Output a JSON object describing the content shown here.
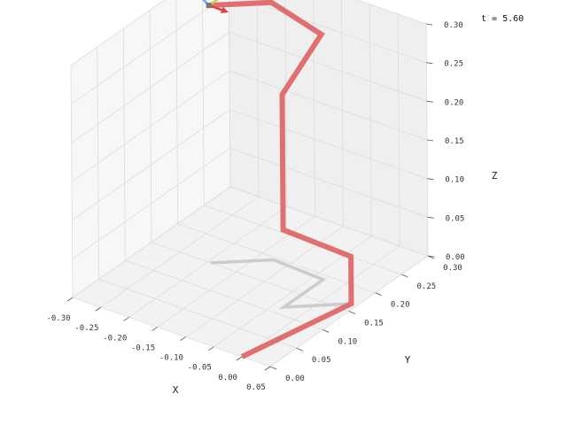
{
  "chart_data": {
    "type": "line",
    "projection": "3d",
    "time_label": "t = 5.60",
    "xlabel": "X",
    "ylabel": "Y",
    "zlabel": "Z",
    "xlim": [
      -0.3,
      0.05
    ],
    "ylim": [
      0.0,
      0.3
    ],
    "zlim": [
      0.0,
      0.3
    ],
    "x_ticks": [
      "-0.30",
      "-0.25",
      "-0.20",
      "-0.15",
      "-0.10",
      "-0.05",
      "0.00",
      "0.05"
    ],
    "y_ticks": [
      "0.00",
      "0.05",
      "0.10",
      "0.15",
      "0.20",
      "0.25",
      "0.30"
    ],
    "z_ticks": [
      "0.00",
      "0.05",
      "0.10",
      "0.15",
      "0.20",
      "0.25",
      "0.30"
    ],
    "grid": true,
    "series": [
      {
        "color": "#e07070",
        "role": "arm",
        "points": [
          [
            0.0,
            0.0,
            0.0
          ],
          [
            0.04,
            0.165,
            0.0
          ],
          [
            0.04,
            0.165,
            0.061
          ],
          [
            -0.034,
            0.116,
            0.1
          ],
          [
            -0.034,
            0.116,
            0.275
          ],
          [
            -0.034,
            0.191,
            0.317
          ],
          [
            -0.126,
            0.195,
            0.333
          ],
          [
            -0.195,
            0.15,
            0.333
          ]
        ]
      },
      {
        "color": "#cccccc",
        "role": "shadow",
        "points": [
          [
            0.04,
            0.165,
            0.0
          ],
          [
            -0.034,
            0.116,
            0.0
          ],
          [
            -0.034,
            0.191,
            0.0
          ],
          [
            -0.126,
            0.195,
            0.0
          ],
          [
            -0.195,
            0.15,
            0.0
          ]
        ]
      }
    ],
    "frame": {
      "origin": [
        -0.195,
        0.15,
        0.333
      ],
      "axes": [
        {
          "color": "#e84040",
          "end": [
            -0.16,
            0.15,
            0.333
          ]
        },
        {
          "color": "#b8d85a",
          "end": [
            -0.195,
            0.213,
            0.333
          ]
        },
        {
          "color": "#60b0f0",
          "end": [
            -0.232,
            0.152,
            0.35
          ]
        }
      ]
    }
  }
}
